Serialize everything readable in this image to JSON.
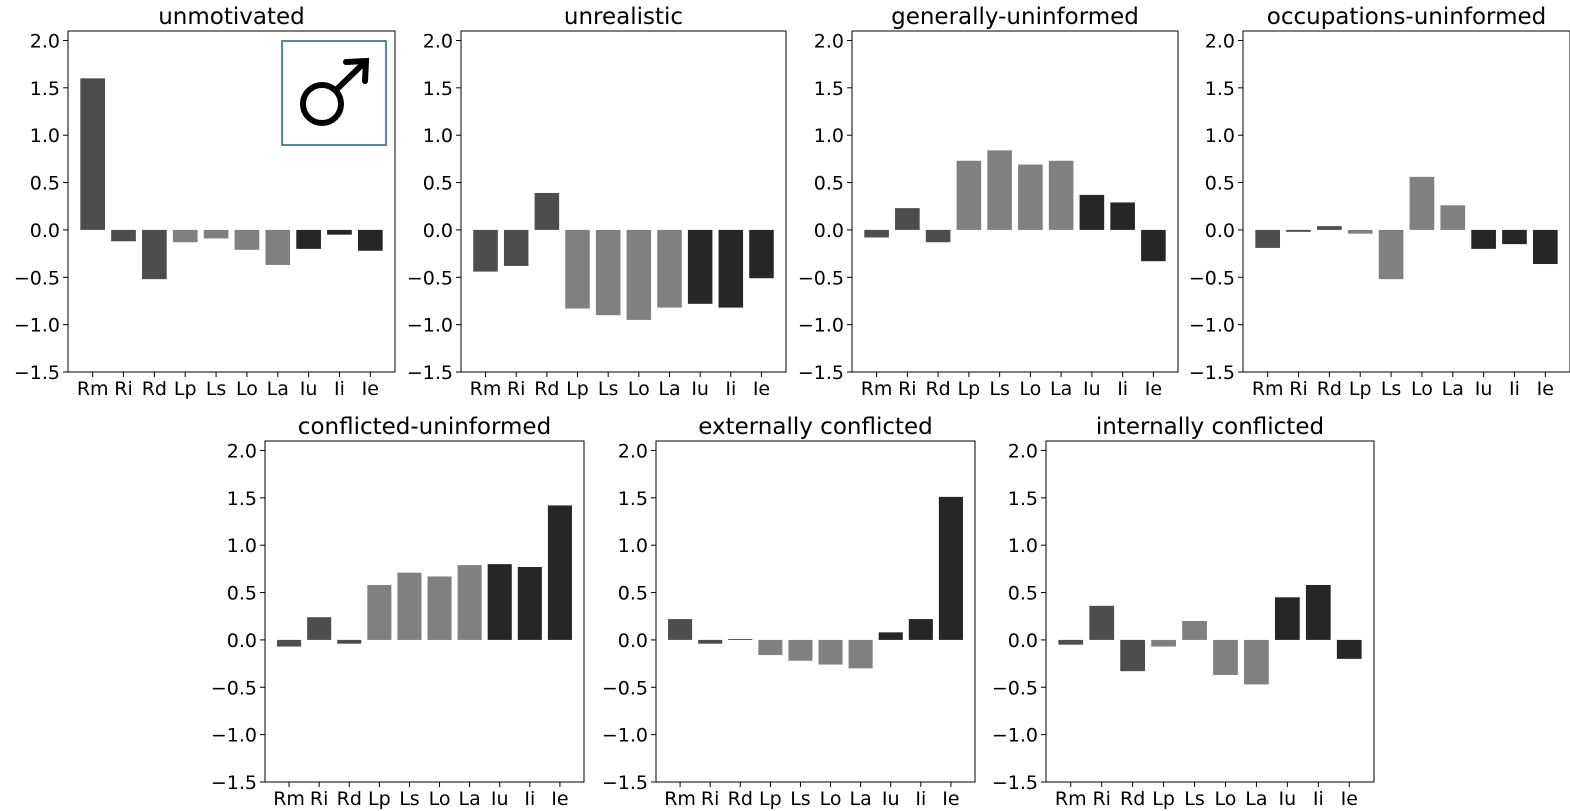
{
  "chart_data": [
    {
      "type": "bar",
      "title": "unmotivated",
      "categories": [
        "Rm",
        "Ri",
        "Rd",
        "Lp",
        "Ls",
        "Lo",
        "La",
        "Iu",
        "Ii",
        "Ie"
      ],
      "values": [
        1.6,
        -0.12,
        -0.52,
        -0.13,
        -0.09,
        -0.21,
        -0.37,
        -0.2,
        -0.05,
        -0.22
      ],
      "colors": [
        "#4d4d4d",
        "#4d4d4d",
        "#4d4d4d",
        "#808080",
        "#808080",
        "#808080",
        "#808080",
        "#262626",
        "#262626",
        "#262626"
      ],
      "ylim": [
        -1.5,
        2.1
      ],
      "yticks": [
        "2.0",
        "1.5",
        "1.0",
        "0.5",
        "0.0",
        "−0.5",
        "−1.0",
        "−1.5"
      ],
      "inset": {
        "symbol": "♂",
        "icon": "male-symbol-icon",
        "border_color": "#1f5f8b"
      }
    },
    {
      "type": "bar",
      "title": "unrealistic",
      "categories": [
        "Rm",
        "Ri",
        "Rd",
        "Lp",
        "Ls",
        "Lo",
        "La",
        "Iu",
        "Ii",
        "Ie"
      ],
      "values": [
        -0.44,
        -0.38,
        0.39,
        -0.83,
        -0.9,
        -0.95,
        -0.82,
        -0.78,
        -0.82,
        -0.51
      ],
      "colors": [
        "#4d4d4d",
        "#4d4d4d",
        "#4d4d4d",
        "#808080",
        "#808080",
        "#808080",
        "#808080",
        "#262626",
        "#262626",
        "#262626"
      ],
      "ylim": [
        -1.5,
        2.1
      ],
      "yticks": [
        "2.0",
        "1.5",
        "1.0",
        "0.5",
        "0.0",
        "−0.5",
        "−1.0",
        "−1.5"
      ]
    },
    {
      "type": "bar",
      "title": "generally-uninformed",
      "categories": [
        "Rm",
        "Ri",
        "Rd",
        "Lp",
        "Ls",
        "Lo",
        "La",
        "Iu",
        "Ii",
        "Ie"
      ],
      "values": [
        -0.08,
        0.23,
        -0.13,
        0.73,
        0.84,
        0.69,
        0.73,
        0.37,
        0.29,
        -0.33
      ],
      "colors": [
        "#4d4d4d",
        "#4d4d4d",
        "#4d4d4d",
        "#808080",
        "#808080",
        "#808080",
        "#808080",
        "#262626",
        "#262626",
        "#262626"
      ],
      "ylim": [
        -1.5,
        2.1
      ],
      "yticks": [
        "2.0",
        "1.5",
        "1.0",
        "0.5",
        "0.0",
        "−0.5",
        "−1.0",
        "−1.5"
      ]
    },
    {
      "type": "bar",
      "title": "occupations-uninformed",
      "categories": [
        "Rm",
        "Ri",
        "Rd",
        "Lp",
        "Ls",
        "Lo",
        "La",
        "Iu",
        "Ii",
        "Ie"
      ],
      "values": [
        -0.19,
        -0.02,
        0.04,
        -0.04,
        -0.52,
        0.56,
        0.26,
        -0.2,
        -0.15,
        -0.36
      ],
      "colors": [
        "#4d4d4d",
        "#4d4d4d",
        "#4d4d4d",
        "#808080",
        "#808080",
        "#808080",
        "#808080",
        "#262626",
        "#262626",
        "#262626"
      ],
      "ylim": [
        -1.5,
        2.1
      ],
      "yticks": [
        "2.0",
        "1.5",
        "1.0",
        "0.5",
        "0.0",
        "−0.5",
        "−1.0",
        "−1.5"
      ]
    },
    {
      "type": "bar",
      "title": "conflicted-uninformed",
      "categories": [
        "Rm",
        "Ri",
        "Rd",
        "Lp",
        "Ls",
        "Lo",
        "La",
        "Iu",
        "Ii",
        "Ie"
      ],
      "values": [
        -0.07,
        0.24,
        -0.04,
        0.58,
        0.71,
        0.67,
        0.79,
        0.8,
        0.77,
        1.42
      ],
      "colors": [
        "#4d4d4d",
        "#4d4d4d",
        "#4d4d4d",
        "#808080",
        "#808080",
        "#808080",
        "#808080",
        "#262626",
        "#262626",
        "#262626"
      ],
      "ylim": [
        -1.5,
        2.1
      ],
      "yticks": [
        "2.0",
        "1.5",
        "1.0",
        "0.5",
        "0.0",
        "−0.5",
        "−1.0",
        "−1.5"
      ]
    },
    {
      "type": "bar",
      "title": "externally conflicted",
      "categories": [
        "Rm",
        "Ri",
        "Rd",
        "Lp",
        "Ls",
        "Lo",
        "La",
        "Iu",
        "Ii",
        "Ie"
      ],
      "values": [
        0.22,
        -0.04,
        0.01,
        -0.16,
        -0.22,
        -0.26,
        -0.3,
        0.08,
        0.22,
        1.51
      ],
      "colors": [
        "#4d4d4d",
        "#4d4d4d",
        "#4d4d4d",
        "#808080",
        "#808080",
        "#808080",
        "#808080",
        "#262626",
        "#262626",
        "#262626"
      ],
      "ylim": [
        -1.5,
        2.1
      ],
      "yticks": [
        "2.0",
        "1.5",
        "1.0",
        "0.5",
        "0.0",
        "−0.5",
        "−1.0",
        "−1.5"
      ]
    },
    {
      "type": "bar",
      "title": "internally conflicted",
      "categories": [
        "Rm",
        "Ri",
        "Rd",
        "Lp",
        "Ls",
        "Lo",
        "La",
        "Iu",
        "Ii",
        "Ie"
      ],
      "values": [
        -0.05,
        0.36,
        -0.33,
        -0.07,
        0.2,
        -0.37,
        -0.47,
        0.45,
        0.58,
        -0.2
      ],
      "colors": [
        "#4d4d4d",
        "#4d4d4d",
        "#4d4d4d",
        "#808080",
        "#808080",
        "#808080",
        "#808080",
        "#262626",
        "#262626",
        "#262626"
      ],
      "ylim": [
        -1.5,
        2.1
      ],
      "yticks": [
        "2.0",
        "1.5",
        "1.0",
        "0.5",
        "0.0",
        "−0.5",
        "−1.0",
        "−1.5"
      ]
    }
  ]
}
